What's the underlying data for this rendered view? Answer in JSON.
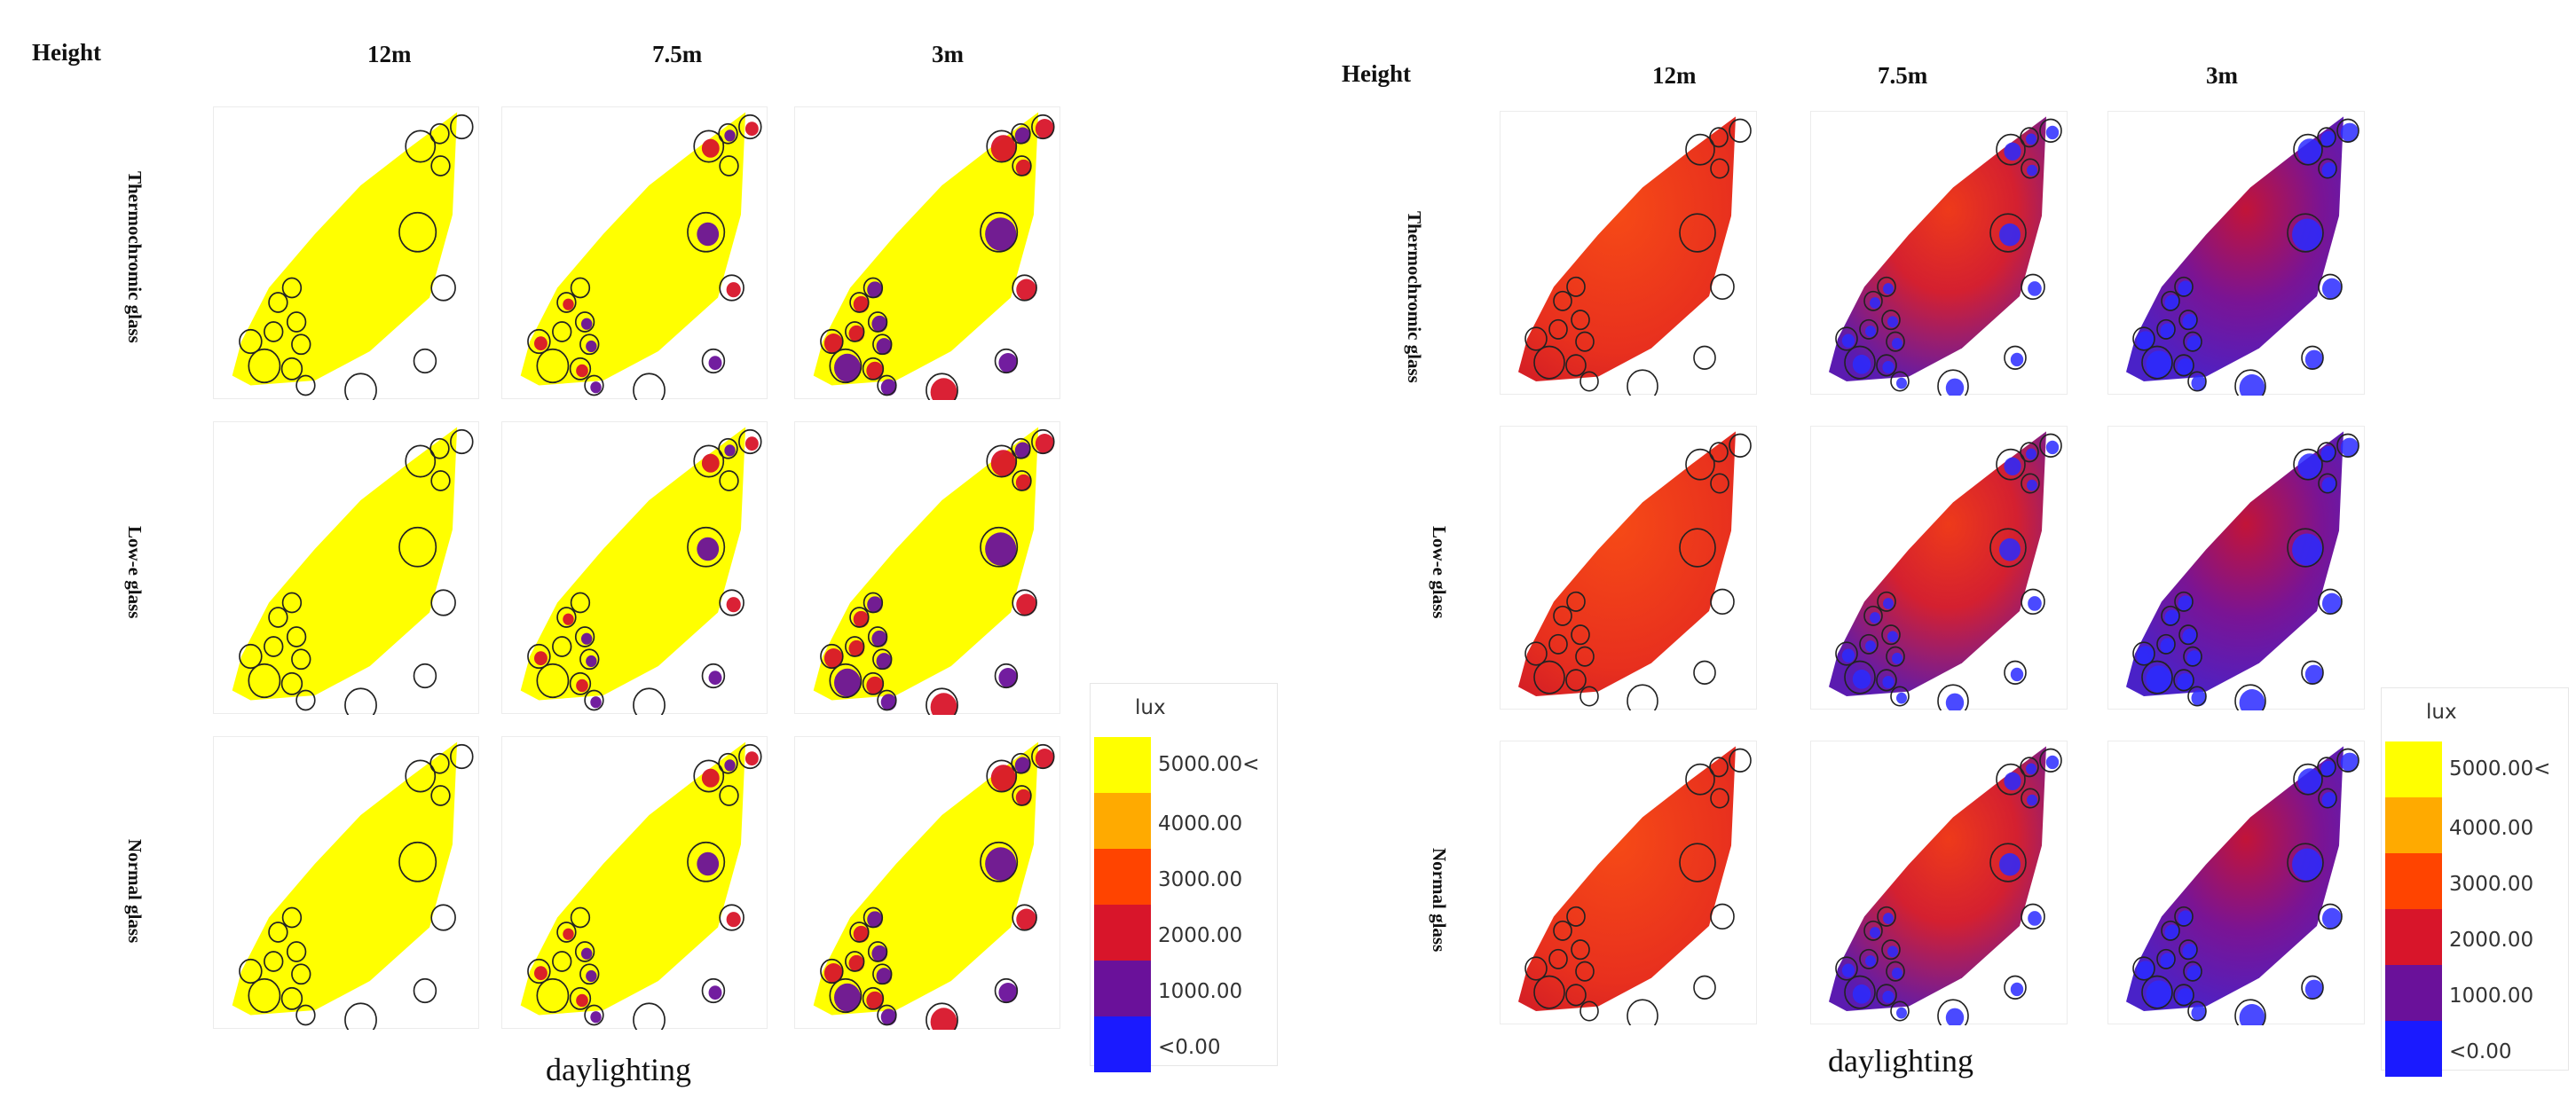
{
  "figure": {
    "left": {
      "height_label": "Height",
      "columns": [
        "12m",
        "7.5m",
        "3m"
      ],
      "rows": [
        "Thermochromic glass",
        "Low-e glass",
        "Normal glass"
      ],
      "xlabel": "daylighting",
      "map_style": "threshold"
    },
    "right": {
      "height_label": "Height",
      "columns": [
        "12m",
        "7.5m",
        "3m"
      ],
      "rows": [
        "Thermochromic glass",
        "Low-e glass",
        "Normal glass"
      ],
      "xlabel": "daylighting",
      "map_style": "gradient"
    }
  },
  "legend": {
    "unit": "lux",
    "entries": [
      {
        "label": "5000.00<",
        "color": "#ffff00"
      },
      {
        "label": "4000.00",
        "color": "#ffaa00"
      },
      {
        "label": "3000.00",
        "color": "#ff4400"
      },
      {
        "label": "2000.00",
        "color": "#d8152a"
      },
      {
        "label": "1000.00",
        "color": "#6a119a"
      },
      {
        "label": "<0.00",
        "color": "#1a1aff"
      }
    ]
  },
  "colors": {
    "threshold_fill": "#ffff00",
    "gradient_warm": "#ee3a1a",
    "gradient_cool": "#6a119a",
    "shadow_core": "#1a1aff",
    "tree_outline": "#222222"
  }
}
